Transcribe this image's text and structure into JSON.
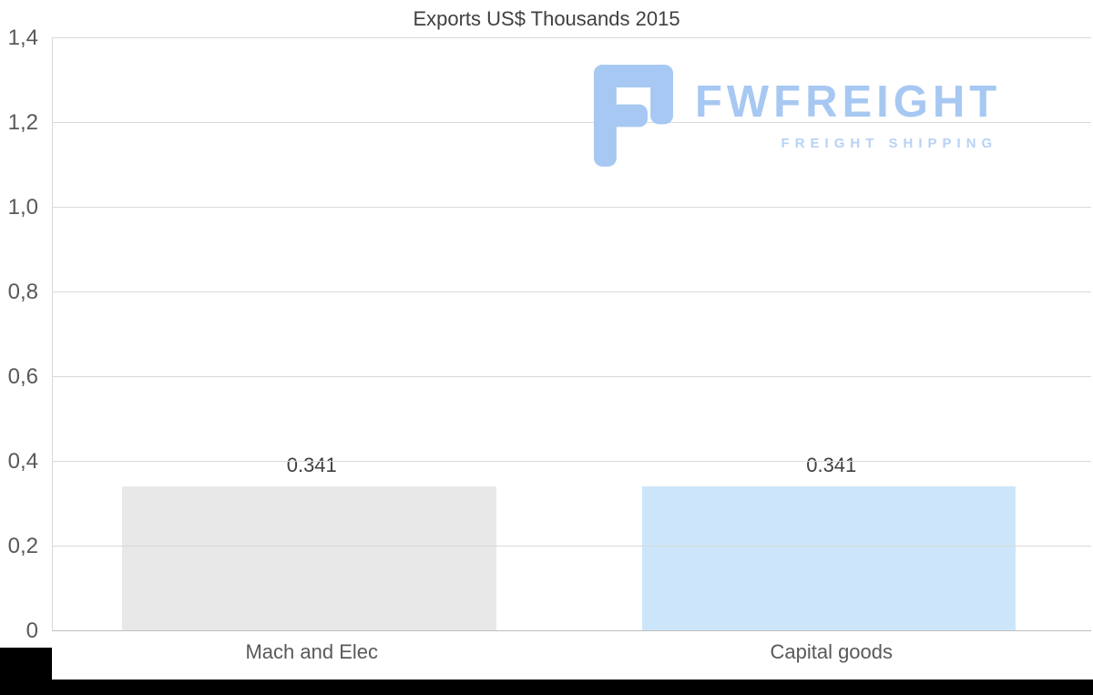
{
  "chart_data": {
    "type": "bar",
    "title": "Exports US$ Thousands 2015",
    "categories": [
      "Mach and Elec",
      "Capital goods"
    ],
    "values": [
      0.341,
      0.341
    ],
    "value_labels": [
      "0.341",
      "0.341"
    ],
    "bar_colors": [
      "#e8e8e8",
      "#cde5fa"
    ],
    "xlabel": "",
    "ylabel": "",
    "ylim": [
      0,
      1.4
    ],
    "ytick_values": [
      0,
      0.2,
      0.4,
      0.6,
      0.8,
      1.0,
      1.2,
      1.4
    ],
    "ytick_labels": [
      "0",
      "0,2",
      "0,4",
      "0,6",
      "0,8",
      "1,0",
      "1,2",
      "1,4"
    ],
    "grid": true,
    "legend": false
  },
  "watermark": {
    "brand": "FWFREIGHT",
    "tagline": "FREIGHT SHIPPING",
    "brand_color": "#a6c8f2",
    "tagline_color": "#b7d2f5",
    "icon_color": "#a6c8f2",
    "icon": "fwfreight-logo-icon"
  },
  "colors": {
    "title_text": "#404040",
    "axis_text": "#595959",
    "gridline": "#d9d9d9",
    "baseline": "#bfbfbf",
    "value_text": "#404040",
    "crop_strip": "#000000"
  }
}
